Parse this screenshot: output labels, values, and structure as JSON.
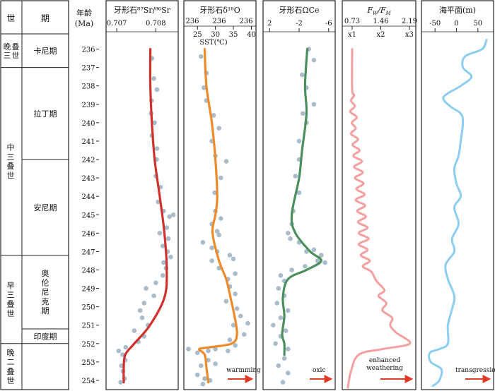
{
  "headers": {
    "epoch": "世",
    "stage": "期",
    "age_line1": "年龄",
    "age_line2": "(Ma)"
  },
  "epochs": [
    {
      "label": "晚三叠世",
      "from": 235.2,
      "to": 237.0
    },
    {
      "label": "中三叠世",
      "from": 237.0,
      "to": 247.2
    },
    {
      "label": "早三叠世",
      "from": 247.2,
      "to": 252.0
    },
    {
      "label": "晚二叠世",
      "from": 252.0,
      "to": 254.6
    }
  ],
  "stages": [
    {
      "label": "卡尼期",
      "from": 235.2,
      "to": 237.0
    },
    {
      "label": "拉丁期",
      "from": 237.0,
      "to": 242.0
    },
    {
      "label": "安尼期",
      "from": 242.0,
      "to": 247.2
    },
    {
      "label": "奥伦尼克期",
      "from": 247.2,
      "to": 251.2
    },
    {
      "label": "印度期",
      "from": 251.2,
      "to": 252.0
    }
  ],
  "ages": [
    236,
    237,
    238,
    239,
    240,
    241,
    242,
    243,
    244,
    245,
    246,
    247,
    248,
    249,
    250,
    251,
    252,
    253,
    254
  ],
  "colors": {
    "points": "#a9bccb",
    "sr": "#d0312d",
    "o": "#ef8a2a",
    "ce": "#4a8f5c",
    "fw": "#f2a0a0",
    "sea": "#8dcdf0",
    "arrow": "#e03a2a"
  },
  "chart_data": [
    {
      "type": "scatter",
      "title": "牙形石⁸⁷Sr/⁸⁶Sr",
      "xlim": [
        0.7068,
        0.7085
      ],
      "x_ticks": [
        "0.707",
        "0.708"
      ],
      "y_label": "年龄(Ma)",
      "trend_color": "sr",
      "points": [
        [
          0.7079,
          236.5
        ],
        [
          0.70795,
          237.6
        ],
        [
          0.70803,
          238.2
        ],
        [
          0.70789,
          238.8
        ],
        [
          0.70788,
          239.5
        ],
        [
          0.70797,
          240.0
        ],
        [
          0.7079,
          240.7
        ],
        [
          0.70803,
          241.4
        ],
        [
          0.70802,
          242.0
        ],
        [
          0.708,
          242.9
        ],
        [
          0.70812,
          243.5
        ],
        [
          0.70806,
          244.3
        ],
        [
          0.7082,
          244.8
        ],
        [
          0.70835,
          245.1
        ],
        [
          0.70845,
          245.0
        ],
        [
          0.70828,
          245.7
        ],
        [
          0.7081,
          246.0
        ],
        [
          0.70832,
          246.3
        ],
        [
          0.70818,
          246.7
        ],
        [
          0.7083,
          247.0
        ],
        [
          0.70838,
          247.3
        ],
        [
          0.7082,
          247.6
        ],
        [
          0.70826,
          247.9
        ],
        [
          0.70818,
          248.3
        ],
        [
          0.708,
          248.7
        ],
        [
          0.70775,
          249.0
        ],
        [
          0.70795,
          249.4
        ],
        [
          0.7077,
          249.8
        ],
        [
          0.7076,
          250.2
        ],
        [
          0.70765,
          250.6
        ],
        [
          0.7078,
          251.0
        ],
        [
          0.70745,
          251.3
        ],
        [
          0.7077,
          251.6
        ],
        [
          0.70755,
          251.9
        ],
        [
          0.70723,
          252.2
        ],
        [
          0.70705,
          252.4
        ],
        [
          0.70715,
          252.6
        ],
        [
          0.70722,
          252.9
        ],
        [
          0.70712,
          253.2
        ],
        [
          0.70716,
          253.5
        ],
        [
          0.7072,
          253.9
        ],
        [
          0.7071,
          254.1
        ]
      ],
      "trend": [
        [
          0.70786,
          236.0
        ],
        [
          0.70786,
          238.0
        ],
        [
          0.7079,
          240.0
        ],
        [
          0.70797,
          242.0
        ],
        [
          0.7081,
          244.0
        ],
        [
          0.70822,
          246.0
        ],
        [
          0.70828,
          248.0
        ],
        [
          0.70822,
          249.5
        ],
        [
          0.70785,
          251.0
        ],
        [
          0.70745,
          252.0
        ],
        [
          0.70722,
          252.6
        ],
        [
          0.70718,
          253.3
        ],
        [
          0.70718,
          254.1
        ]
      ]
    },
    {
      "type": "scatter",
      "title": "牙形石δ¹⁸O",
      "xlim": [
        22.0,
        40.5
      ],
      "x_ticks_top": [
        "236",
        "236",
        "236"
      ],
      "x_ticks_bottom": [
        "25",
        "30",
        "35",
        "40"
      ],
      "x_ticks_bottom_values": [
        25,
        30,
        35,
        40
      ],
      "sst_label": "SST(℃)",
      "annotation": "warmming",
      "trend_color": "o",
      "points": [
        [
          26.0,
          236.4
        ],
        [
          27.5,
          237.3
        ],
        [
          26.8,
          238.1
        ],
        [
          27.5,
          238.8
        ],
        [
          29.5,
          239.6
        ],
        [
          31.0,
          240.3
        ],
        [
          29.0,
          241.0
        ],
        [
          30.0,
          241.8
        ],
        [
          33.0,
          242.1
        ],
        [
          31.5,
          243.0
        ],
        [
          29.8,
          243.8
        ],
        [
          30.0,
          244.8
        ],
        [
          31.5,
          245.2
        ],
        [
          29.0,
          245.5
        ],
        [
          30.5,
          245.9
        ],
        [
          31.0,
          246.1
        ],
        [
          26.5,
          246.5
        ],
        [
          29.0,
          246.8
        ],
        [
          30.5,
          247.0
        ],
        [
          34.0,
          247.2
        ],
        [
          35.0,
          247.4
        ],
        [
          29.0,
          247.5
        ],
        [
          31.0,
          247.9
        ],
        [
          35.5,
          248.2
        ],
        [
          33.5,
          248.5
        ],
        [
          34.0,
          248.9
        ],
        [
          35.5,
          249.3
        ],
        [
          33.0,
          249.7
        ],
        [
          36.0,
          250.1
        ],
        [
          37.0,
          250.5
        ],
        [
          35.0,
          251.0
        ],
        [
          39.0,
          250.9
        ],
        [
          38.0,
          251.5
        ],
        [
          34.0,
          251.8
        ],
        [
          35.5,
          252.1
        ],
        [
          22.5,
          252.3
        ],
        [
          25.0,
          252.5
        ],
        [
          28.0,
          252.4
        ],
        [
          30.0,
          252.3
        ],
        [
          33.5,
          252.4
        ],
        [
          28.0,
          252.9
        ],
        [
          26.0,
          253.2
        ],
        [
          30.0,
          253.1
        ],
        [
          25.0,
          253.7
        ],
        [
          27.0,
          253.9
        ],
        [
          28.5,
          254.0
        ],
        [
          26.5,
          254.2
        ]
      ],
      "trend": [
        [
          27.0,
          236.0
        ],
        [
          27.5,
          238.0
        ],
        [
          29.0,
          240.0
        ],
        [
          30.0,
          242.0
        ],
        [
          30.5,
          244.0
        ],
        [
          30.0,
          245.0
        ],
        [
          29.2,
          246.0
        ],
        [
          31.0,
          247.5
        ],
        [
          33.0,
          248.5
        ],
        [
          34.2,
          249.5
        ],
        [
          35.3,
          250.5
        ],
        [
          36.0,
          251.5
        ],
        [
          34.5,
          252.0
        ],
        [
          28.5,
          252.2
        ],
        [
          25.5,
          252.3
        ],
        [
          27.0,
          252.6
        ],
        [
          27.5,
          253.3
        ],
        [
          28.0,
          254.1
        ]
      ]
    },
    {
      "type": "scatter",
      "title": "牙形石ΩCe",
      "xlim": [
        2.5,
        -6.5
      ],
      "x_ticks": [
        "2",
        "-2",
        "-6"
      ],
      "x_ticks_values": [
        2,
        -2,
        -6
      ],
      "annotation": "oxic",
      "trend_color": "ce",
      "points": [
        [
          -3.3,
          236.0
        ],
        [
          -4.0,
          236.6
        ],
        [
          -2.4,
          237.4
        ],
        [
          -3.0,
          238.1
        ],
        [
          -4.0,
          239.0
        ],
        [
          -2.5,
          239.5
        ],
        [
          -3.0,
          240.0
        ],
        [
          -2.0,
          241.0
        ],
        [
          -2.0,
          242.0
        ],
        [
          -1.5,
          242.9
        ],
        [
          -2.0,
          243.8
        ],
        [
          -1.2,
          244.8
        ],
        [
          -1.0,
          245.5
        ],
        [
          -0.5,
          246.0
        ],
        [
          -0.8,
          246.3
        ],
        [
          -2.0,
          246.5
        ],
        [
          -3.0,
          247.0
        ],
        [
          -4.0,
          246.9
        ],
        [
          -5.0,
          247.2
        ],
        [
          -5.5,
          247.6
        ],
        [
          -4.5,
          247.5
        ],
        [
          -2.8,
          247.8
        ],
        [
          -1.0,
          248.0
        ],
        [
          0.5,
          248.3
        ],
        [
          0.0,
          248.6
        ],
        [
          0.8,
          249.0
        ],
        [
          0.0,
          249.4
        ],
        [
          1.0,
          249.8
        ],
        [
          -0.5,
          250.2
        ],
        [
          0.5,
          250.6
        ],
        [
          1.5,
          251.0
        ],
        [
          -0.2,
          251.3
        ],
        [
          0.5,
          251.6
        ],
        [
          1.2,
          252.0
        ],
        [
          -0.5,
          252.3
        ],
        [
          0.0,
          252.8
        ],
        [
          0.8,
          253.2
        ],
        [
          -0.5,
          253.6
        ],
        [
          0.2,
          254.1
        ]
      ],
      "trend": [
        [
          -3.1,
          236.0
        ],
        [
          -2.8,
          238.0
        ],
        [
          -3.0,
          239.5
        ],
        [
          -2.4,
          241.5
        ],
        [
          -2.0,
          243.0
        ],
        [
          -1.0,
          245.0
        ],
        [
          -1.5,
          246.0
        ],
        [
          -3.5,
          247.0
        ],
        [
          -5.0,
          247.5
        ],
        [
          -3.0,
          248.0
        ],
        [
          -0.5,
          248.5
        ],
        [
          0.2,
          249.5
        ],
        [
          0.0,
          250.5
        ],
        [
          0.3,
          251.5
        ],
        [
          0.0,
          252.0
        ],
        [
          0.0,
          252.6
        ]
      ]
    },
    {
      "type": "line",
      "title": "FW/FM",
      "xlim": [
        0.55,
        2.28
      ],
      "x_ticks_top": [
        "0.73",
        "1.46",
        "2.19"
      ],
      "x_ticks_bottom": [
        "x1",
        "x2",
        "x3"
      ],
      "x_ticks_values": [
        0.73,
        1.46,
        2.19
      ],
      "annotation_line1": "enhanced",
      "annotation_line2": "weathering",
      "line_color": "fw",
      "points": [
        [
          0.73,
          236.0
        ],
        [
          0.73,
          238.2
        ],
        [
          0.78,
          238.5
        ],
        [
          0.7,
          238.8
        ],
        [
          0.8,
          239.1
        ],
        [
          0.68,
          239.4
        ],
        [
          0.85,
          239.7
        ],
        [
          0.72,
          240.0
        ],
        [
          0.82,
          240.3
        ],
        [
          0.7,
          240.6
        ],
        [
          0.88,
          240.9
        ],
        [
          0.74,
          241.2
        ],
        [
          0.92,
          241.5
        ],
        [
          0.76,
          241.8
        ],
        [
          0.98,
          242.1
        ],
        [
          0.78,
          242.4
        ],
        [
          1.0,
          242.7
        ],
        [
          0.8,
          243.0
        ],
        [
          1.02,
          243.3
        ],
        [
          0.84,
          243.6
        ],
        [
          1.05,
          243.9
        ],
        [
          0.82,
          244.2
        ],
        [
          1.06,
          244.5
        ],
        [
          0.86,
          244.8
        ],
        [
          1.08,
          245.1
        ],
        [
          0.88,
          245.4
        ],
        [
          1.12,
          245.7
        ],
        [
          0.9,
          246.0
        ],
        [
          1.15,
          246.3
        ],
        [
          0.9,
          246.6
        ],
        [
          1.12,
          246.9
        ],
        [
          0.95,
          247.2
        ],
        [
          1.18,
          247.5
        ],
        [
          1.0,
          247.8
        ],
        [
          1.22,
          248.1
        ],
        [
          1.35,
          248.6
        ],
        [
          1.55,
          249.1
        ],
        [
          1.4,
          249.4
        ],
        [
          1.6,
          249.8
        ],
        [
          1.5,
          250.2
        ],
        [
          1.75,
          250.6
        ],
        [
          1.7,
          251.0
        ],
        [
          1.85,
          251.4
        ],
        [
          2.2,
          252.0
        ],
        [
          1.5,
          252.3
        ],
        [
          0.9,
          252.6
        ],
        [
          0.7,
          253.5
        ],
        [
          0.65,
          254.0
        ],
        [
          0.62,
          254.4
        ]
      ]
    },
    {
      "type": "line",
      "title": "海平面(m)",
      "xlim": [
        -75,
        80
      ],
      "x_ticks": [
        "-50",
        "0",
        "50"
      ],
      "x_ticks_values": [
        -50,
        0,
        50
      ],
      "annotation": "transgression",
      "line_color": "sea",
      "points": [
        [
          70,
          235.5
        ],
        [
          60,
          236.0
        ],
        [
          20,
          236.4
        ],
        [
          15,
          237.0
        ],
        [
          35,
          237.5
        ],
        [
          10,
          238.0
        ],
        [
          -30,
          238.6
        ],
        [
          -15,
          239.1
        ],
        [
          10,
          239.5
        ],
        [
          15,
          240.0
        ],
        [
          10,
          241.0
        ],
        [
          5,
          241.8
        ],
        [
          -5,
          242.5
        ],
        [
          0,
          243.3
        ],
        [
          10,
          244.0
        ],
        [
          -5,
          244.6
        ],
        [
          5,
          245.5
        ],
        [
          -10,
          246.3
        ],
        [
          -5,
          247.0
        ],
        [
          -25,
          247.7
        ],
        [
          -20,
          248.5
        ],
        [
          -5,
          249.4
        ],
        [
          -10,
          250.1
        ],
        [
          -20,
          251.0
        ],
        [
          -20,
          252.0
        ],
        [
          -40,
          252.3
        ],
        [
          -62,
          252.5
        ],
        [
          -60,
          253.0
        ],
        [
          -35,
          253.4
        ],
        [
          -40,
          254.0
        ],
        [
          -55,
          254.3
        ]
      ]
    }
  ]
}
